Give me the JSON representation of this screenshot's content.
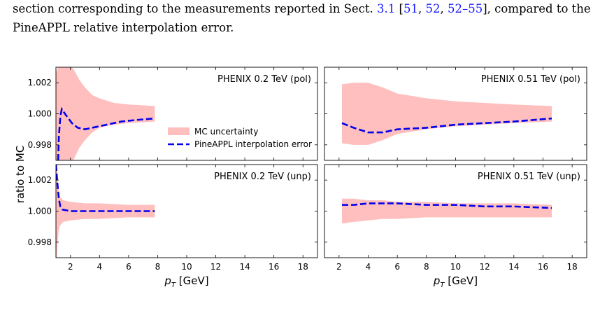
{
  "text": {
    "line1_part1": "section corresponding to the measurements reported in Sect.",
    "line1_sect": "3.1",
    "line1_open": "[",
    "line1_cite1": "51",
    "line1_sep1": ",",
    "line1_cite2": "52",
    "line1_sep2": ",",
    "line1_cite3": "52–55",
    "line1_close": "], compared to the",
    "line2": "PineAPPL relative interpolation error."
  },
  "chart_data": {
    "type": "line",
    "ylabel": "ratio to MC",
    "xlabel_main": "p",
    "xlabel_sub": "T",
    "xlabel_unit": "[GeV]",
    "xlim": [
      1,
      19
    ],
    "x_ticks": [
      2,
      4,
      6,
      8,
      10,
      12,
      14,
      16,
      18
    ],
    "ylim": [
      0.997,
      1.003
    ],
    "y_ticks": [
      0.998,
      1.0,
      1.002
    ],
    "y_tick_labels": [
      "0.998",
      "1.000",
      "1.002"
    ],
    "legend": {
      "position": "center-right",
      "band_label": "MC uncertainty",
      "line_label": "PineAPPL interpolation error"
    },
    "colors": {
      "band": "#ffbfbf",
      "line": "#0000ee"
    },
    "panels": [
      {
        "title": "PHENIX 0.2 TeV (pol)",
        "band": {
          "x": [
            1.0,
            1.1,
            1.4,
            1.8,
            2.2,
            2.6,
            3.0,
            3.5,
            4.0,
            5.0,
            6.0,
            7.8
          ],
          "upper": [
            1.0026,
            1.0029,
            1.0034,
            1.0032,
            1.0029,
            1.0022,
            1.0017,
            1.0012,
            1.001,
            1.0007,
            1.0006,
            1.0005
          ],
          "lower": [
            0.9965,
            0.9963,
            0.9965,
            0.9967,
            0.997,
            0.9978,
            0.9983,
            0.9988,
            0.9991,
            0.9993,
            0.9994,
            0.9995
          ]
        },
        "line": {
          "x": [
            1.15,
            1.2,
            1.3,
            1.4,
            1.7,
            2.1,
            2.5,
            3.0,
            3.5,
            4.5,
            5.5,
            6.5,
            7.8
          ],
          "y": [
            0.997,
            0.9985,
            0.9998,
            1.0003,
            0.9999,
            0.9994,
            0.9991,
            0.999,
            0.9991,
            0.9993,
            0.9995,
            0.9996,
            0.9997
          ]
        }
      },
      {
        "title": "PHENIX 0.51 TeV (pol)",
        "band": {
          "x": [
            2.2,
            3.0,
            4.0,
            5.0,
            6.0,
            8.0,
            10.0,
            12.0,
            14.0,
            16.6
          ],
          "upper": [
            1.0019,
            1.002,
            1.002,
            1.0017,
            1.0013,
            1.001,
            1.0008,
            1.0007,
            1.0006,
            1.0005
          ],
          "lower": [
            0.9981,
            0.998,
            0.998,
            0.9983,
            0.9987,
            0.999,
            0.9992,
            0.9993,
            0.9994,
            0.9995
          ]
        },
        "line": {
          "x": [
            2.2,
            3.0,
            4.0,
            5.0,
            6.0,
            8.0,
            10.0,
            12.0,
            14.0,
            16.6
          ],
          "y": [
            0.9994,
            0.9991,
            0.9988,
            0.9988,
            0.999,
            0.9991,
            0.9993,
            0.9994,
            0.9995,
            0.9997
          ]
        }
      },
      {
        "title": "PHENIX 0.2 TeV (unp)",
        "band": {
          "x": [
            1.0,
            1.05,
            1.1,
            1.2,
            1.3,
            1.5,
            2.0,
            3.0,
            4.0,
            6.0,
            7.8
          ],
          "upper": [
            1.0035,
            1.003,
            1.0022,
            1.0012,
            1.0009,
            1.0007,
            1.0006,
            1.0005,
            1.0005,
            1.0004,
            1.0004
          ],
          "lower": [
            0.9965,
            0.997,
            0.9978,
            0.9988,
            0.9991,
            0.9993,
            0.9994,
            0.9995,
            0.9995,
            0.9996,
            0.9996
          ]
        },
        "line": {
          "x": [
            1.0,
            1.1,
            1.2,
            1.3,
            1.45,
            2.0,
            3.0,
            5.0,
            7.8
          ],
          "y": [
            1.003,
            1.0018,
            1.0008,
            1.0003,
            1.0001,
            1.0,
            1.0,
            1.0,
            1.0
          ]
        }
      },
      {
        "title": "PHENIX 0.51 TeV (unp)",
        "band": {
          "x": [
            2.2,
            3.0,
            4.0,
            5.0,
            6.0,
            8.0,
            10.0,
            12.0,
            14.0,
            16.6
          ],
          "upper": [
            1.0008,
            1.0008,
            1.0007,
            1.0007,
            1.0006,
            1.0006,
            1.0005,
            1.0005,
            1.0005,
            1.0004
          ],
          "lower": [
            0.9992,
            0.9993,
            0.9994,
            0.9995,
            0.9995,
            0.9996,
            0.9996,
            0.9996,
            0.9996,
            0.9996
          ]
        },
        "line": {
          "x": [
            2.2,
            3.0,
            4.0,
            5.0,
            6.0,
            8.0,
            10.0,
            12.0,
            14.0,
            16.6
          ],
          "y": [
            1.0004,
            1.0004,
            1.0005,
            1.0005,
            1.0005,
            1.0004,
            1.0004,
            1.0003,
            1.0003,
            1.0002
          ]
        }
      }
    ]
  }
}
